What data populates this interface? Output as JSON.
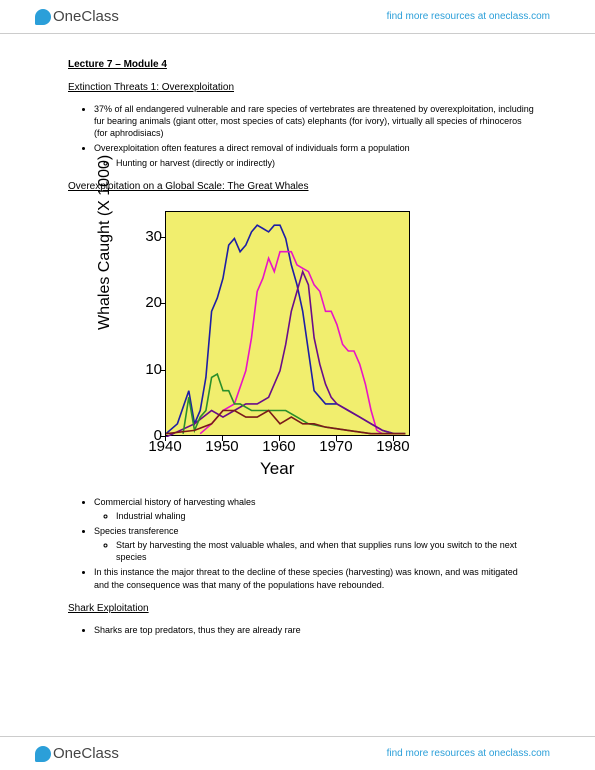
{
  "brand": {
    "name_a": "One",
    "name_b": "Class"
  },
  "header_link": "find more resources at oneclass.com",
  "footer_link": "find more resources at oneclass.com",
  "lecture_title": "Lecture 7  – Module 4",
  "sec1_head": "Extinction Threats 1: Overexploitation",
  "sec1_b1": "37% of all endangered vulnerable and rare species of vertebrates are threatened by overexploitation, including fur bearing animals (giant otter, most species of cats) elephants (for ivory), virtually all species of rhinoceros (for aphrodisiacs)",
  "sec1_b2": "Overexploitation often features a direct removal of individuals form a population",
  "sec1_b2a": "Hunting or harvest (directly or indirectly)",
  "sec2_head": "Overexploitation on a Global Scale: The Great Whales",
  "sec3_b1": "Commercial history of harvesting whales",
  "sec3_b1a": "Industrial whaling",
  "sec3_b2": "Species transference",
  "sec3_b2a": "Start by harvesting the most valuable whales, and when that supplies runs low you switch to the next species",
  "sec3_b3": "In this instance the major threat to the decline of these species (harvesting) was known, and was mitigated and the consequence was that many of the populations have rebounded.",
  "sec4_head": "Shark Exploitation",
  "sec4_b1": "Sharks are top predators, thus they are already rare",
  "chart": {
    "type": "line",
    "background_color": "#f1ee6e",
    "border_color": "#000000",
    "xlabel": "Year",
    "ylabel": "Whales Caught (X 1000)",
    "label_fontsize": 17,
    "tick_fontsize": 15,
    "xlim": [
      1940,
      1983
    ],
    "ylim": [
      0,
      34
    ],
    "xticks": [
      1940,
      1950,
      1960,
      1970,
      1980
    ],
    "yticks": [
      0,
      10,
      20,
      30
    ],
    "line_width": 1.6,
    "series": [
      {
        "color": "#1e1ea5",
        "points": [
          [
            1940,
            0.5
          ],
          [
            1942,
            2
          ],
          [
            1944,
            7
          ],
          [
            1945,
            2
          ],
          [
            1946,
            4
          ],
          [
            1947,
            9
          ],
          [
            1948,
            19
          ],
          [
            1949,
            21
          ],
          [
            1950,
            24
          ],
          [
            1951,
            29
          ],
          [
            1952,
            30
          ],
          [
            1953,
            28
          ],
          [
            1954,
            29
          ],
          [
            1955,
            31
          ],
          [
            1956,
            32
          ],
          [
            1957,
            31.5
          ],
          [
            1958,
            31
          ],
          [
            1959,
            32
          ],
          [
            1960,
            32
          ],
          [
            1961,
            30
          ],
          [
            1962,
            26
          ],
          [
            1963,
            23
          ],
          [
            1964,
            19
          ],
          [
            1965,
            13
          ],
          [
            1966,
            7
          ],
          [
            1967,
            6
          ],
          [
            1968,
            5
          ],
          [
            1969,
            5
          ],
          [
            1970,
            5
          ],
          [
            1972,
            4
          ],
          [
            1974,
            3
          ],
          [
            1976,
            2
          ],
          [
            1978,
            1
          ],
          [
            1980,
            0.5
          ],
          [
            1982,
            0.5
          ]
        ]
      },
      {
        "color": "#e815c5",
        "points": [
          [
            1946,
            0.5
          ],
          [
            1948,
            2
          ],
          [
            1950,
            4
          ],
          [
            1952,
            5
          ],
          [
            1954,
            10
          ],
          [
            1955,
            15
          ],
          [
            1956,
            22
          ],
          [
            1957,
            24
          ],
          [
            1958,
            27
          ],
          [
            1959,
            25
          ],
          [
            1960,
            28
          ],
          [
            1961,
            28
          ],
          [
            1962,
            28
          ],
          [
            1963,
            26
          ],
          [
            1964,
            25.5
          ],
          [
            1965,
            25
          ],
          [
            1966,
            23
          ],
          [
            1967,
            22
          ],
          [
            1968,
            19
          ],
          [
            1969,
            19
          ],
          [
            1970,
            17
          ],
          [
            1971,
            14
          ],
          [
            1972,
            13
          ],
          [
            1973,
            13
          ],
          [
            1974,
            11
          ],
          [
            1975,
            8
          ],
          [
            1976,
            4
          ],
          [
            1977,
            1
          ],
          [
            1978,
            0.5
          ],
          [
            1980,
            0.5
          ],
          [
            1982,
            0.5
          ]
        ]
      },
      {
        "color": "#6a0d8a",
        "points": [
          [
            1940,
            0
          ],
          [
            1945,
            2
          ],
          [
            1948,
            4
          ],
          [
            1950,
            3
          ],
          [
            1952,
            4
          ],
          [
            1954,
            5
          ],
          [
            1956,
            5
          ],
          [
            1958,
            6
          ],
          [
            1960,
            10
          ],
          [
            1961,
            14
          ],
          [
            1962,
            19
          ],
          [
            1963,
            22
          ],
          [
            1964,
            25
          ],
          [
            1965,
            23
          ],
          [
            1966,
            15
          ],
          [
            1967,
            11
          ],
          [
            1968,
            8
          ],
          [
            1969,
            6
          ],
          [
            1970,
            5
          ],
          [
            1972,
            4
          ],
          [
            1974,
            3
          ],
          [
            1976,
            2
          ],
          [
            1978,
            1
          ],
          [
            1980,
            0.5
          ],
          [
            1982,
            0.5
          ]
        ]
      },
      {
        "color": "#2a8f2a",
        "points": [
          [
            1943,
            0.5
          ],
          [
            1944,
            6
          ],
          [
            1945,
            1
          ],
          [
            1946,
            3
          ],
          [
            1947,
            4
          ],
          [
            1948,
            9
          ],
          [
            1949,
            9.5
          ],
          [
            1950,
            7
          ],
          [
            1951,
            7
          ],
          [
            1952,
            5
          ],
          [
            1953,
            5
          ],
          [
            1955,
            4
          ],
          [
            1957,
            4
          ],
          [
            1959,
            4
          ],
          [
            1961,
            4
          ],
          [
            1963,
            3
          ],
          [
            1965,
            2
          ],
          [
            1968,
            1.5
          ],
          [
            1972,
            1
          ],
          [
            1976,
            0.5
          ],
          [
            1980,
            0.5
          ],
          [
            1982,
            0.5
          ]
        ]
      },
      {
        "color": "#7a1a1a",
        "points": [
          [
            1940,
            0.5
          ],
          [
            1945,
            1
          ],
          [
            1948,
            2
          ],
          [
            1950,
            4
          ],
          [
            1952,
            4
          ],
          [
            1954,
            3
          ],
          [
            1956,
            3
          ],
          [
            1958,
            4
          ],
          [
            1960,
            2
          ],
          [
            1962,
            3
          ],
          [
            1964,
            2
          ],
          [
            1966,
            2
          ],
          [
            1968,
            1.5
          ],
          [
            1972,
            1
          ],
          [
            1976,
            0.5
          ],
          [
            1980,
            0.5
          ],
          [
            1982,
            0.5
          ]
        ]
      }
    ]
  }
}
